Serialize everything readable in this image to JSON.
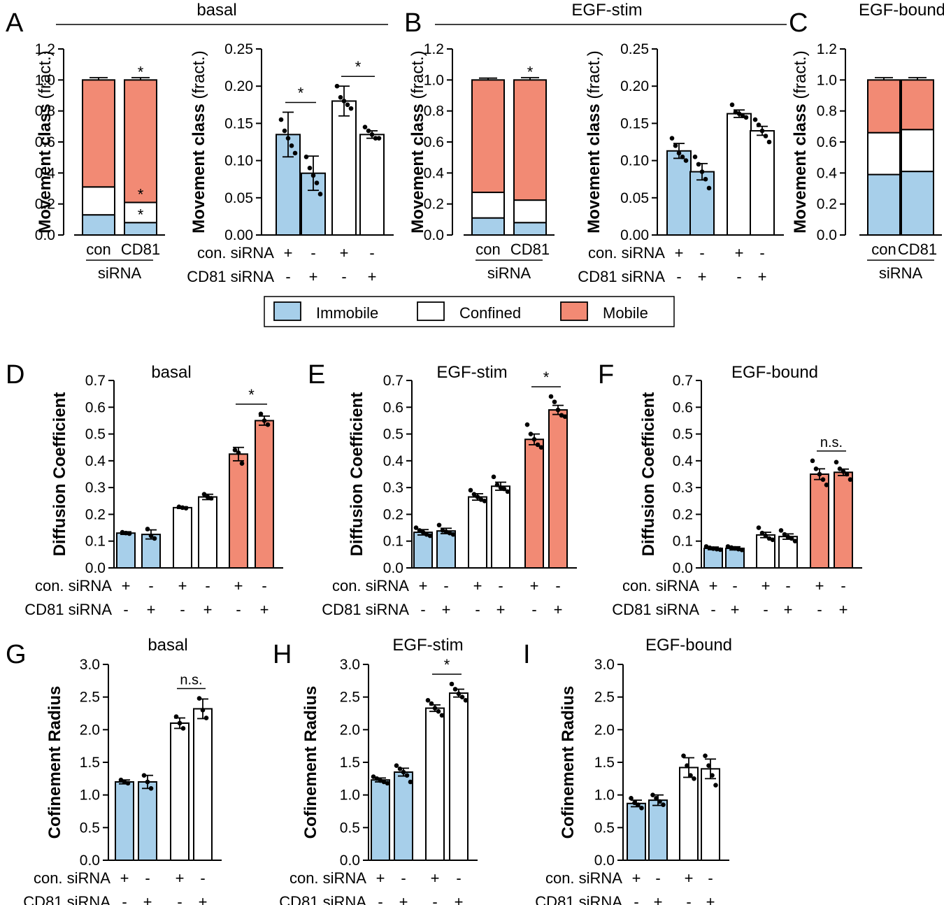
{
  "colors": {
    "immobile": "#a7cfea",
    "confined": "#ffffff",
    "mobile": "#f28a74"
  },
  "legend": {
    "items": [
      "Immobile",
      "Confined",
      "Mobile"
    ]
  },
  "condition_labels": {
    "con": "con. siRNA",
    "cd81": "CD81 siRNA",
    "plus": "+",
    "minus": "-",
    "con_short": "con",
    "cd81_short": "CD81",
    "sirna": "siRNA"
  },
  "chart_data": [
    {
      "panel": "A",
      "id": "A1",
      "type": "stacked-bar",
      "title": "basal",
      "ylabel": "Movement class",
      "ylabel_suffix": "(fract.)",
      "ylim": [
        0,
        1.2
      ],
      "yticks": [
        "0.0",
        "0.2",
        "0.4",
        "0.6",
        "0.8",
        "1.0",
        "1.2"
      ],
      "categories": [
        "con",
        "CD81"
      ],
      "xgroup_label": "siRNA",
      "series": [
        {
          "name": "Immobile",
          "values": [
            0.13,
            0.08
          ],
          "err": [
            0.015,
            0.012
          ]
        },
        {
          "name": "Confined",
          "values": [
            0.18,
            0.13
          ],
          "err": [
            0.012,
            0.01
          ]
        },
        {
          "name": "Mobile",
          "values": [
            0.69,
            0.79
          ],
          "err": [
            0.015,
            0.015
          ]
        }
      ],
      "significance": [
        {
          "bar": 1,
          "at": 1.0,
          "label": "*"
        },
        {
          "bar": 1,
          "at": 0.21,
          "label": "*"
        },
        {
          "bar": 1,
          "at": 0.08,
          "label": "*"
        }
      ]
    },
    {
      "panel": "A",
      "id": "A2",
      "type": "bar",
      "ylabel": "Movement class",
      "ylabel_suffix": "(fract.)",
      "ylim": [
        0,
        0.25
      ],
      "yticks": [
        "0.00",
        "0.05",
        "0.10",
        "0.15",
        "0.20",
        "0.25"
      ],
      "categories": [
        "con+",
        "CD81+",
        "con+",
        "CD81+"
      ],
      "con_siRNA": [
        "+",
        "-",
        "+",
        "-"
      ],
      "cd81_siRNA": [
        "-",
        "+",
        "-",
        "+"
      ],
      "values": [
        0.135,
        0.083,
        0.18,
        0.135
      ],
      "errors": [
        0.03,
        0.023,
        0.02,
        0.005
      ],
      "fills": [
        "immobile",
        "immobile",
        "confined",
        "confined"
      ],
      "points": [
        [
          0.155,
          0.14,
          0.13,
          0.12,
          0.11
        ],
        [
          0.105,
          0.09,
          0.08,
          0.07,
          0.055
        ],
        [
          0.2,
          0.185,
          0.18,
          0.175,
          0.17
        ],
        [
          0.145,
          0.14,
          0.135,
          0.13,
          0.13
        ]
      ],
      "significance": [
        {
          "bars": [
            0,
            1
          ],
          "label": "*"
        },
        {
          "bars": [
            2,
            3
          ],
          "label": "*"
        }
      ]
    },
    {
      "panel": "B",
      "id": "B1",
      "type": "stacked-bar",
      "title": "EGF-stim",
      "ylabel": "Movement class",
      "ylabel_suffix": "(fract.)",
      "ylim": [
        0,
        1.2
      ],
      "yticks": [
        "0.0",
        "0.2",
        "0.4",
        "0.6",
        "0.8",
        "1.0",
        "1.2"
      ],
      "categories": [
        "con",
        "CD81"
      ],
      "xgroup_label": "siRNA",
      "series": [
        {
          "name": "Immobile",
          "values": [
            0.11,
            0.08
          ],
          "err": [
            0.012,
            0.012
          ]
        },
        {
          "name": "Confined",
          "values": [
            0.165,
            0.145
          ],
          "err": [
            0.008,
            0.008
          ]
        },
        {
          "name": "Mobile",
          "values": [
            0.725,
            0.775
          ],
          "err": [
            0.012,
            0.015
          ]
        }
      ],
      "significance": [
        {
          "bar": 1,
          "at": 1.0,
          "label": "*"
        }
      ]
    },
    {
      "panel": "B",
      "id": "B2",
      "type": "bar",
      "ylabel": "Movement class",
      "ylabel_suffix": "(fract.)",
      "ylim": [
        0,
        0.25
      ],
      "yticks": [
        "0.00",
        "0.05",
        "0.10",
        "0.15",
        "0.20",
        "0.25"
      ],
      "categories": [
        "con+",
        "CD81+",
        "con+",
        "CD81+"
      ],
      "con_siRNA": [
        "+",
        "-",
        "+",
        "-"
      ],
      "cd81_siRNA": [
        "-",
        "+",
        "-",
        "+"
      ],
      "values": [
        0.113,
        0.085,
        0.163,
        0.14
      ],
      "errors": [
        0.01,
        0.011,
        0.005,
        0.006
      ],
      "fills": [
        "immobile",
        "immobile",
        "confined",
        "confined"
      ],
      "points": [
        [
          0.13,
          0.12,
          0.11,
          0.105,
          0.1
        ],
        [
          0.105,
          0.095,
          0.085,
          0.075,
          0.063
        ],
        [
          0.175,
          0.165,
          0.163,
          0.16,
          0.158
        ],
        [
          0.155,
          0.148,
          0.14,
          0.133,
          0.125
        ]
      ],
      "significance": []
    },
    {
      "panel": "C",
      "id": "C1",
      "type": "stacked-bar",
      "title": "EGF-bound",
      "ylabel": "Movement class",
      "ylabel_suffix": "(fract.)",
      "ylim": [
        0,
        1.2
      ],
      "yticks": [
        "0.0",
        "0.2",
        "0.4",
        "0.6",
        "0.8",
        "1.0",
        "1.2"
      ],
      "categories": [
        "con",
        "CD81"
      ],
      "xgroup_label": "siRNA",
      "series": [
        {
          "name": "Immobile",
          "values": [
            0.39,
            0.41
          ],
          "err": [
            0.02,
            0.02
          ]
        },
        {
          "name": "Confined",
          "values": [
            0.27,
            0.27
          ],
          "err": [
            0.015,
            0.012
          ]
        },
        {
          "name": "Mobile",
          "values": [
            0.34,
            0.32
          ],
          "err": [
            0.015,
            0.015
          ]
        }
      ],
      "significance": []
    },
    {
      "panel": "D",
      "id": "D",
      "type": "bar",
      "title": "basal",
      "ylabel": "Diffusion Coefficient",
      "ylim": [
        0,
        0.7
      ],
      "yticks": [
        "0.0",
        "0.1",
        "0.2",
        "0.3",
        "0.4",
        "0.5",
        "0.6",
        "0.7"
      ],
      "categories": [
        "1",
        "2",
        "3",
        "4",
        "5",
        "6"
      ],
      "con_siRNA": [
        "+",
        "-",
        "+",
        "-",
        "+",
        "-"
      ],
      "cd81_siRNA": [
        "-",
        "+",
        "-",
        "+",
        "-",
        "+"
      ],
      "values": [
        0.13,
        0.125,
        0.225,
        0.265,
        0.425,
        0.55
      ],
      "errors": [
        0.005,
        0.017,
        0.003,
        0.01,
        0.025,
        0.017
      ],
      "fills": [
        "immobile",
        "immobile",
        "confined",
        "confined",
        "mobile",
        "mobile"
      ],
      "points": [
        [
          0.133,
          0.13,
          0.128
        ],
        [
          0.145,
          0.12,
          0.11
        ],
        [
          0.228,
          0.225,
          0.223
        ],
        [
          0.275,
          0.265,
          0.26
        ],
        [
          0.44,
          0.43,
          0.39
        ],
        [
          0.575,
          0.55,
          0.535
        ]
      ],
      "significance": [
        {
          "bars": [
            4,
            5
          ],
          "label": "*"
        }
      ]
    },
    {
      "panel": "E",
      "id": "E",
      "type": "bar",
      "title": "EGF-stim",
      "ylabel": "Diffusion Coefficient",
      "ylim": [
        0,
        0.7
      ],
      "yticks": [
        "0.0",
        "0.1",
        "0.2",
        "0.3",
        "0.4",
        "0.5",
        "0.6",
        "0.7"
      ],
      "categories": [
        "1",
        "2",
        "3",
        "4",
        "5",
        "6"
      ],
      "con_siRNA": [
        "+",
        "-",
        "+",
        "-",
        "+",
        "-"
      ],
      "cd81_siRNA": [
        "-",
        "+",
        "-",
        "+",
        "-",
        "+"
      ],
      "values": [
        0.133,
        0.138,
        0.265,
        0.305,
        0.48,
        0.59
      ],
      "errors": [
        0.01,
        0.01,
        0.012,
        0.015,
        0.02,
        0.017
      ],
      "fills": [
        "immobile",
        "immobile",
        "confined",
        "confined",
        "mobile",
        "mobile"
      ],
      "points": [
        [
          0.15,
          0.14,
          0.133,
          0.125,
          0.12
        ],
        [
          0.16,
          0.14,
          0.135,
          0.13,
          0.125
        ],
        [
          0.29,
          0.275,
          0.265,
          0.255,
          0.25
        ],
        [
          0.34,
          0.31,
          0.3,
          0.295,
          0.285
        ],
        [
          0.535,
          0.5,
          0.48,
          0.46,
          0.45
        ],
        [
          0.64,
          0.62,
          0.59,
          0.57,
          0.565
        ]
      ],
      "significance": [
        {
          "bars": [
            4,
            5
          ],
          "label": "*"
        }
      ]
    },
    {
      "panel": "F",
      "id": "F",
      "type": "bar",
      "title": "EGF-bound",
      "ylabel": "Diffusion Coefficient",
      "ylim": [
        0,
        0.7
      ],
      "yticks": [
        "0.0",
        "0.1",
        "0.2",
        "0.3",
        "0.4",
        "0.5",
        "0.6",
        "0.7"
      ],
      "categories": [
        "1",
        "2",
        "3",
        "4",
        "5",
        "6"
      ],
      "con_siRNA": [
        "+",
        "-",
        "+",
        "-",
        "+",
        "-"
      ],
      "cd81_siRNA": [
        "-",
        "+",
        "-",
        "+",
        "-",
        "+"
      ],
      "values": [
        0.073,
        0.073,
        0.123,
        0.117,
        0.35,
        0.357
      ],
      "errors": [
        0.005,
        0.006,
        0.01,
        0.01,
        0.02,
        0.012
      ],
      "fills": [
        "immobile",
        "immobile",
        "confined",
        "confined",
        "mobile",
        "mobile"
      ],
      "points": [
        [
          0.08,
          0.075,
          0.072,
          0.07,
          0.068
        ],
        [
          0.08,
          0.076,
          0.073,
          0.07,
          0.067
        ],
        [
          0.15,
          0.13,
          0.12,
          0.11,
          0.105
        ],
        [
          0.14,
          0.125,
          0.115,
          0.11,
          0.1
        ],
        [
          0.4,
          0.37,
          0.35,
          0.33,
          0.31
        ],
        [
          0.395,
          0.37,
          0.36,
          0.35,
          0.33
        ]
      ],
      "significance": [
        {
          "bars": [
            4,
            5
          ],
          "label": "n.s."
        }
      ]
    },
    {
      "panel": "G",
      "id": "G",
      "type": "bar",
      "title": "basal",
      "ylabel": "Cofinement Radius",
      "ylim": [
        0,
        3.0
      ],
      "yticks": [
        "0.0",
        "0.5",
        "1.0",
        "1.5",
        "2.0",
        "2.5",
        "3.0"
      ],
      "categories": [
        "1",
        "2",
        "3",
        "4"
      ],
      "con_siRNA": [
        "+",
        "-",
        "+",
        "-"
      ],
      "cd81_siRNA": [
        "-",
        "+",
        "-",
        "+"
      ],
      "values": [
        1.2,
        1.2,
        2.1,
        2.32
      ],
      "errors": [
        0.03,
        0.1,
        0.08,
        0.15
      ],
      "fills": [
        "immobile",
        "immobile",
        "confined",
        "confined"
      ],
      "points": [
        [
          1.23,
          1.2,
          1.18
        ],
        [
          1.3,
          1.2,
          1.1
        ],
        [
          2.2,
          2.1,
          2.02
        ],
        [
          2.48,
          2.3,
          2.18
        ]
      ],
      "significance": [
        {
          "bars": [
            2,
            3
          ],
          "label": "n.s."
        }
      ]
    },
    {
      "panel": "H",
      "id": "H",
      "type": "bar",
      "title": "EGF-stim",
      "ylabel": "Cofinement Radius",
      "ylim": [
        0,
        3.0
      ],
      "yticks": [
        "0.0",
        "0.5",
        "1.0",
        "1.5",
        "2.0",
        "2.5",
        "3.0"
      ],
      "categories": [
        "1",
        "2",
        "3",
        "4"
      ],
      "con_siRNA": [
        "+",
        "-",
        "+",
        "-"
      ],
      "cd81_siRNA": [
        "-",
        "+",
        "-",
        "+"
      ],
      "values": [
        1.23,
        1.35,
        2.33,
        2.56
      ],
      "errors": [
        0.03,
        0.06,
        0.05,
        0.06
      ],
      "fills": [
        "immobile",
        "immobile",
        "confined",
        "confined"
      ],
      "points": [
        [
          1.28,
          1.25,
          1.22,
          1.2,
          1.18
        ],
        [
          1.45,
          1.4,
          1.35,
          1.3,
          1.2
        ],
        [
          2.45,
          2.4,
          2.33,
          2.28,
          2.22
        ],
        [
          2.7,
          2.62,
          2.55,
          2.5,
          2.45
        ]
      ],
      "significance": [
        {
          "bars": [
            2,
            3
          ],
          "label": "*"
        }
      ]
    },
    {
      "panel": "I",
      "id": "I",
      "type": "bar",
      "title": "EGF-bound",
      "ylabel": "Cofinement Radius",
      "ylim": [
        0,
        3.0
      ],
      "yticks": [
        "0.0",
        "0.5",
        "1.0",
        "1.5",
        "2.0",
        "2.5",
        "3.0"
      ],
      "categories": [
        "1",
        "2",
        "3",
        "4"
      ],
      "con_siRNA": [
        "+",
        "-",
        "+",
        "-"
      ],
      "cd81_siRNA": [
        "-",
        "+",
        "-",
        "+"
      ],
      "values": [
        0.87,
        0.92,
        1.42,
        1.4
      ],
      "errors": [
        0.05,
        0.08,
        0.15,
        0.15
      ],
      "fills": [
        "immobile",
        "immobile",
        "confined",
        "confined"
      ],
      "points": [
        [
          0.95,
          0.88,
          0.85,
          0.8
        ],
        [
          1.0,
          0.95,
          0.9,
          0.85
        ],
        [
          1.6,
          1.45,
          1.3,
          1.25
        ],
        [
          1.6,
          1.45,
          1.3,
          1.15
        ]
      ],
      "significance": []
    }
  ]
}
